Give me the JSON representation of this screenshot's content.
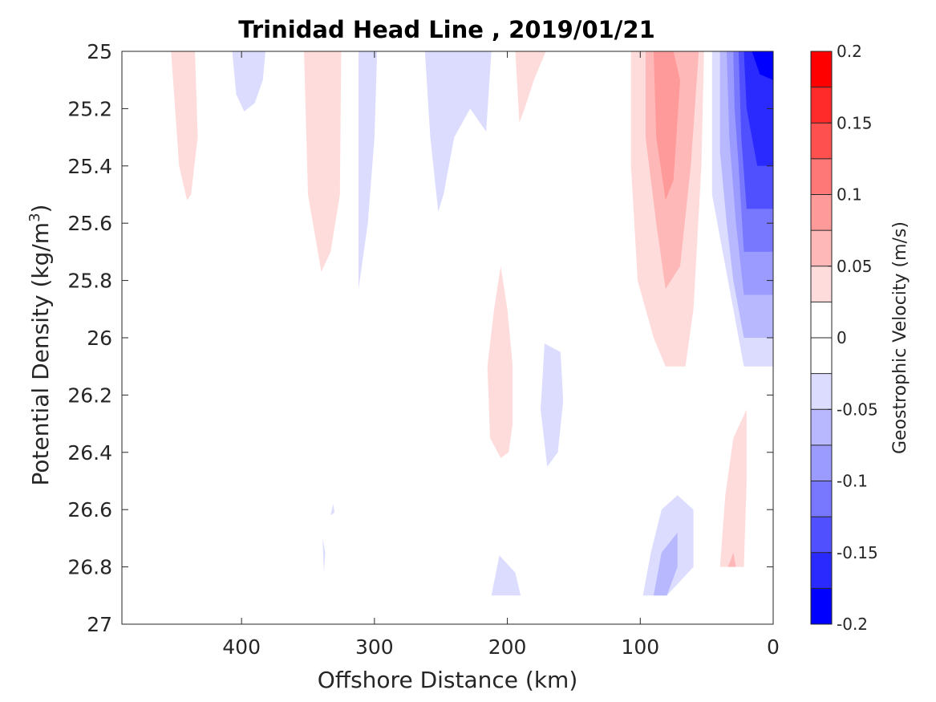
{
  "chart_data": {
    "type": "contourf",
    "title": "Trinidad Head Line , 2019/01/21",
    "xlabel": "Offshore Distance (km)",
    "ylabel": "Potential Density (kg/m",
    "ylabel_sup": "3",
    "ylabel_end": ")",
    "xlim": [
      490,
      0
    ],
    "ylim": [
      25,
      27
    ],
    "x_reversed": true,
    "y_reversed": true,
    "xticks": [
      {
        "value": 400,
        "label": "400"
      },
      {
        "value": 300,
        "label": "300"
      },
      {
        "value": 200,
        "label": "200"
      },
      {
        "value": 100,
        "label": "100"
      },
      {
        "value": 0,
        "label": "0"
      }
    ],
    "yticks": [
      {
        "value": 25,
        "label": "25"
      },
      {
        "value": 25.2,
        "label": "25.2"
      },
      {
        "value": 25.4,
        "label": "25.4"
      },
      {
        "value": 25.6,
        "label": "25.6"
      },
      {
        "value": 25.8,
        "label": "25.8"
      },
      {
        "value": 26,
        "label": "26"
      },
      {
        "value": 26.2,
        "label": "26.2"
      },
      {
        "value": 26.4,
        "label": "26.4"
      },
      {
        "value": 26.6,
        "label": "26.6"
      },
      {
        "value": 26.8,
        "label": "26.8"
      },
      {
        "value": 27,
        "label": "27"
      }
    ],
    "colorbar": {
      "label": "Geostrophic Velocity (m/s)",
      "limits": [
        -0.2,
        0.2
      ],
      "ticks": [
        {
          "value": 0.2,
          "label": "0.2"
        },
        {
          "value": 0.15,
          "label": "0.15"
        },
        {
          "value": 0.1,
          "label": "0.1"
        },
        {
          "value": 0.05,
          "label": "0.05"
        },
        {
          "value": 0,
          "label": "0"
        },
        {
          "value": -0.05,
          "label": "-0.05"
        },
        {
          "value": -0.1,
          "label": "-0.1"
        },
        {
          "value": -0.15,
          "label": "-0.15"
        },
        {
          "value": -0.2,
          "label": "-0.2"
        }
      ],
      "bands": [
        {
          "from": 0.175,
          "to": 0.2,
          "color": "#ff0000"
        },
        {
          "from": 0.15,
          "to": 0.175,
          "color": "#ff2a2a"
        },
        {
          "from": 0.125,
          "to": 0.15,
          "color": "#ff5050"
        },
        {
          "from": 0.1,
          "to": 0.125,
          "color": "#ff7878"
        },
        {
          "from": 0.075,
          "to": 0.1,
          "color": "#ff9a9a"
        },
        {
          "from": 0.05,
          "to": 0.075,
          "color": "#ffb8b8"
        },
        {
          "from": 0.025,
          "to": 0.05,
          "color": "#ffdcdc"
        },
        {
          "from": 0,
          "to": 0.025,
          "color": "#ffffff"
        },
        {
          "from": -0.025,
          "to": 0,
          "color": "#ffffff"
        },
        {
          "from": -0.05,
          "to": -0.025,
          "color": "#dcdcff"
        },
        {
          "from": -0.075,
          "to": -0.05,
          "color": "#b8b8ff"
        },
        {
          "from": -0.1,
          "to": -0.075,
          "color": "#9a9aff"
        },
        {
          "from": -0.125,
          "to": -0.1,
          "color": "#7878ff"
        },
        {
          "from": -0.15,
          "to": -0.125,
          "color": "#5050ff"
        },
        {
          "from": -0.175,
          "to": -0.15,
          "color": "#2a2aff"
        },
        {
          "from": -0.2,
          "to": -0.175,
          "color": "#0000ff"
        }
      ]
    },
    "contour_regions": [
      {
        "level": 0.025,
        "color": "#ffdcdc",
        "points": [
          [
            453,
            25
          ],
          [
            435,
            25
          ],
          [
            433,
            25.3
          ],
          [
            438,
            25.5
          ],
          [
            441,
            25.52
          ],
          [
            447,
            25.4
          ]
        ]
      },
      {
        "level": -0.025,
        "color": "#dcdcff",
        "points": [
          [
            407,
            25
          ],
          [
            382,
            25
          ],
          [
            384,
            25.1
          ],
          [
            390,
            25.18
          ],
          [
            398,
            25.21
          ],
          [
            404,
            25.15
          ]
        ]
      },
      {
        "level": 0.025,
        "color": "#ffdcdc",
        "points": [
          [
            353,
            25
          ],
          [
            325,
            25
          ],
          [
            326,
            25.5
          ],
          [
            333,
            25.7
          ],
          [
            340,
            25.77
          ],
          [
            350,
            25.5
          ]
        ]
      },
      {
        "level": -0.025,
        "color": "#dcdcff",
        "points": [
          [
            312,
            25
          ],
          [
            298,
            25
          ],
          [
            300,
            25.3
          ],
          [
            305,
            25.6
          ],
          [
            312,
            25.83
          ]
        ]
      },
      {
        "level": -0.025,
        "color": "#dcdcff",
        "points": [
          [
            262,
            25
          ],
          [
            212,
            25
          ],
          [
            216,
            25.28
          ],
          [
            228,
            25.2
          ],
          [
            240,
            25.3
          ],
          [
            248,
            25.5
          ],
          [
            252,
            25.56
          ],
          [
            258,
            25.3
          ]
        ]
      },
      {
        "level": 0.025,
        "color": "#ffdcdc",
        "points": [
          [
            194,
            25
          ],
          [
            171,
            25
          ],
          [
            180,
            25.1
          ],
          [
            187,
            25.2
          ],
          [
            191,
            25.25
          ]
        ]
      },
      {
        "level": 0.025,
        "color": "#ffdcdc",
        "points": [
          [
            107,
            25
          ],
          [
            52,
            25
          ],
          [
            54,
            25.4
          ],
          [
            60,
            25.9
          ],
          [
            66,
            26.1
          ],
          [
            81,
            26.1
          ],
          [
            90,
            26.0
          ],
          [
            102,
            25.8
          ],
          [
            107,
            25.4
          ]
        ]
      },
      {
        "level": 0.05,
        "color": "#ffb8b8",
        "points": [
          [
            96,
            25
          ],
          [
            56,
            25
          ],
          [
            62,
            25.4
          ],
          [
            70,
            25.75
          ],
          [
            81,
            25.83
          ],
          [
            88,
            25.6
          ],
          [
            96,
            25.3
          ]
        ]
      },
      {
        "level": 0.075,
        "color": "#ff9a9a",
        "points": [
          [
            90,
            25
          ],
          [
            75,
            25
          ],
          [
            70,
            25.1
          ],
          [
            75,
            25.45
          ],
          [
            81,
            25.52
          ],
          [
            88,
            25.3
          ]
        ]
      },
      {
        "level": -0.025,
        "color": "#dcdcff",
        "points": [
          [
            46,
            25
          ],
          [
            0,
            25
          ],
          [
            0,
            26.1
          ],
          [
            22,
            26.1
          ],
          [
            30,
            25.9
          ],
          [
            38,
            25.7
          ],
          [
            46,
            25.5
          ]
        ]
      },
      {
        "level": -0.05,
        "color": "#b8b8ff",
        "points": [
          [
            40,
            25
          ],
          [
            0,
            25
          ],
          [
            0,
            26.0
          ],
          [
            22,
            26.0
          ],
          [
            30,
            25.8
          ],
          [
            35,
            25.6
          ],
          [
            40,
            25.35
          ]
        ]
      },
      {
        "level": -0.075,
        "color": "#9a9aff",
        "points": [
          [
            35,
            25
          ],
          [
            0,
            25
          ],
          [
            0,
            25.85
          ],
          [
            22,
            25.85
          ],
          [
            28,
            25.6
          ],
          [
            33,
            25.3
          ]
        ]
      },
      {
        "level": -0.1,
        "color": "#7878ff",
        "points": [
          [
            30,
            25
          ],
          [
            0,
            25
          ],
          [
            0,
            25.7
          ],
          [
            22,
            25.7
          ],
          [
            26,
            25.4
          ],
          [
            29,
            25.2
          ]
        ]
      },
      {
        "level": -0.125,
        "color": "#5050ff",
        "points": [
          [
            26,
            25
          ],
          [
            0,
            25
          ],
          [
            0,
            25.55
          ],
          [
            20,
            25.55
          ],
          [
            24,
            25.3
          ]
        ]
      },
      {
        "level": -0.15,
        "color": "#2a2aff",
        "points": [
          [
            22,
            25
          ],
          [
            0,
            25
          ],
          [
            0,
            25.4
          ],
          [
            12,
            25.4
          ],
          [
            20,
            25.2
          ]
        ]
      },
      {
        "level": -0.175,
        "color": "#0000ff",
        "points": [
          [
            16,
            25
          ],
          [
            0,
            25
          ],
          [
            0,
            25.1
          ],
          [
            10,
            25.08
          ]
        ]
      },
      {
        "level": 0.025,
        "color": "#ffdcdc",
        "points": [
          [
            205,
            25.75
          ],
          [
            200,
            25.9
          ],
          [
            196,
            26.1
          ],
          [
            196,
            26.3
          ],
          [
            199,
            26.4
          ],
          [
            205,
            26.42
          ],
          [
            213,
            26.35
          ],
          [
            215,
            26.1
          ],
          [
            210,
            25.9
          ]
        ]
      },
      {
        "level": -0.025,
        "color": "#dcdcff",
        "points": [
          [
            172,
            26.02
          ],
          [
            160,
            26.05
          ],
          [
            158,
            26.22
          ],
          [
            162,
            26.4
          ],
          [
            170,
            26.45
          ],
          [
            175,
            26.25
          ]
        ]
      },
      {
        "level": 0.025,
        "color": "#ffdcdc",
        "points": [
          [
            20,
            26.25
          ],
          [
            30,
            26.35
          ],
          [
            36,
            26.55
          ],
          [
            40,
            26.8
          ],
          [
            22,
            26.8
          ],
          [
            20,
            26.5
          ]
        ]
      },
      {
        "level": 0.05,
        "color": "#ffb8b8",
        "points": [
          [
            30,
            26.75
          ],
          [
            28,
            26.8
          ],
          [
            34,
            26.8
          ]
        ]
      },
      {
        "level": -0.025,
        "color": "#dcdcff",
        "points": [
          [
            60,
            26.6
          ],
          [
            72,
            26.55
          ],
          [
            84,
            26.6
          ],
          [
            92,
            26.75
          ],
          [
            98,
            26.9
          ],
          [
            80,
            26.9
          ],
          [
            60,
            26.8
          ]
        ]
      },
      {
        "level": -0.05,
        "color": "#b8b8ff",
        "points": [
          [
            72,
            26.68
          ],
          [
            84,
            26.75
          ],
          [
            90,
            26.9
          ],
          [
            80,
            26.9
          ],
          [
            72,
            26.8
          ]
        ]
      },
      {
        "level": -0.025,
        "color": "#dcdcff",
        "points": [
          [
            212,
            26.9
          ],
          [
            190,
            26.9
          ],
          [
            194,
            26.82
          ],
          [
            206,
            26.76
          ]
        ]
      },
      {
        "level": -0.025,
        "color": "#dcdcff",
        "points": [
          [
            339,
            26.7
          ],
          [
            338,
            26.82
          ],
          [
            337,
            26.75
          ]
        ]
      },
      {
        "level": -0.025,
        "color": "#dcdcff",
        "points": [
          [
            331,
            26.58
          ],
          [
            330,
            26.61
          ],
          [
            333,
            26.62
          ]
        ]
      }
    ]
  }
}
